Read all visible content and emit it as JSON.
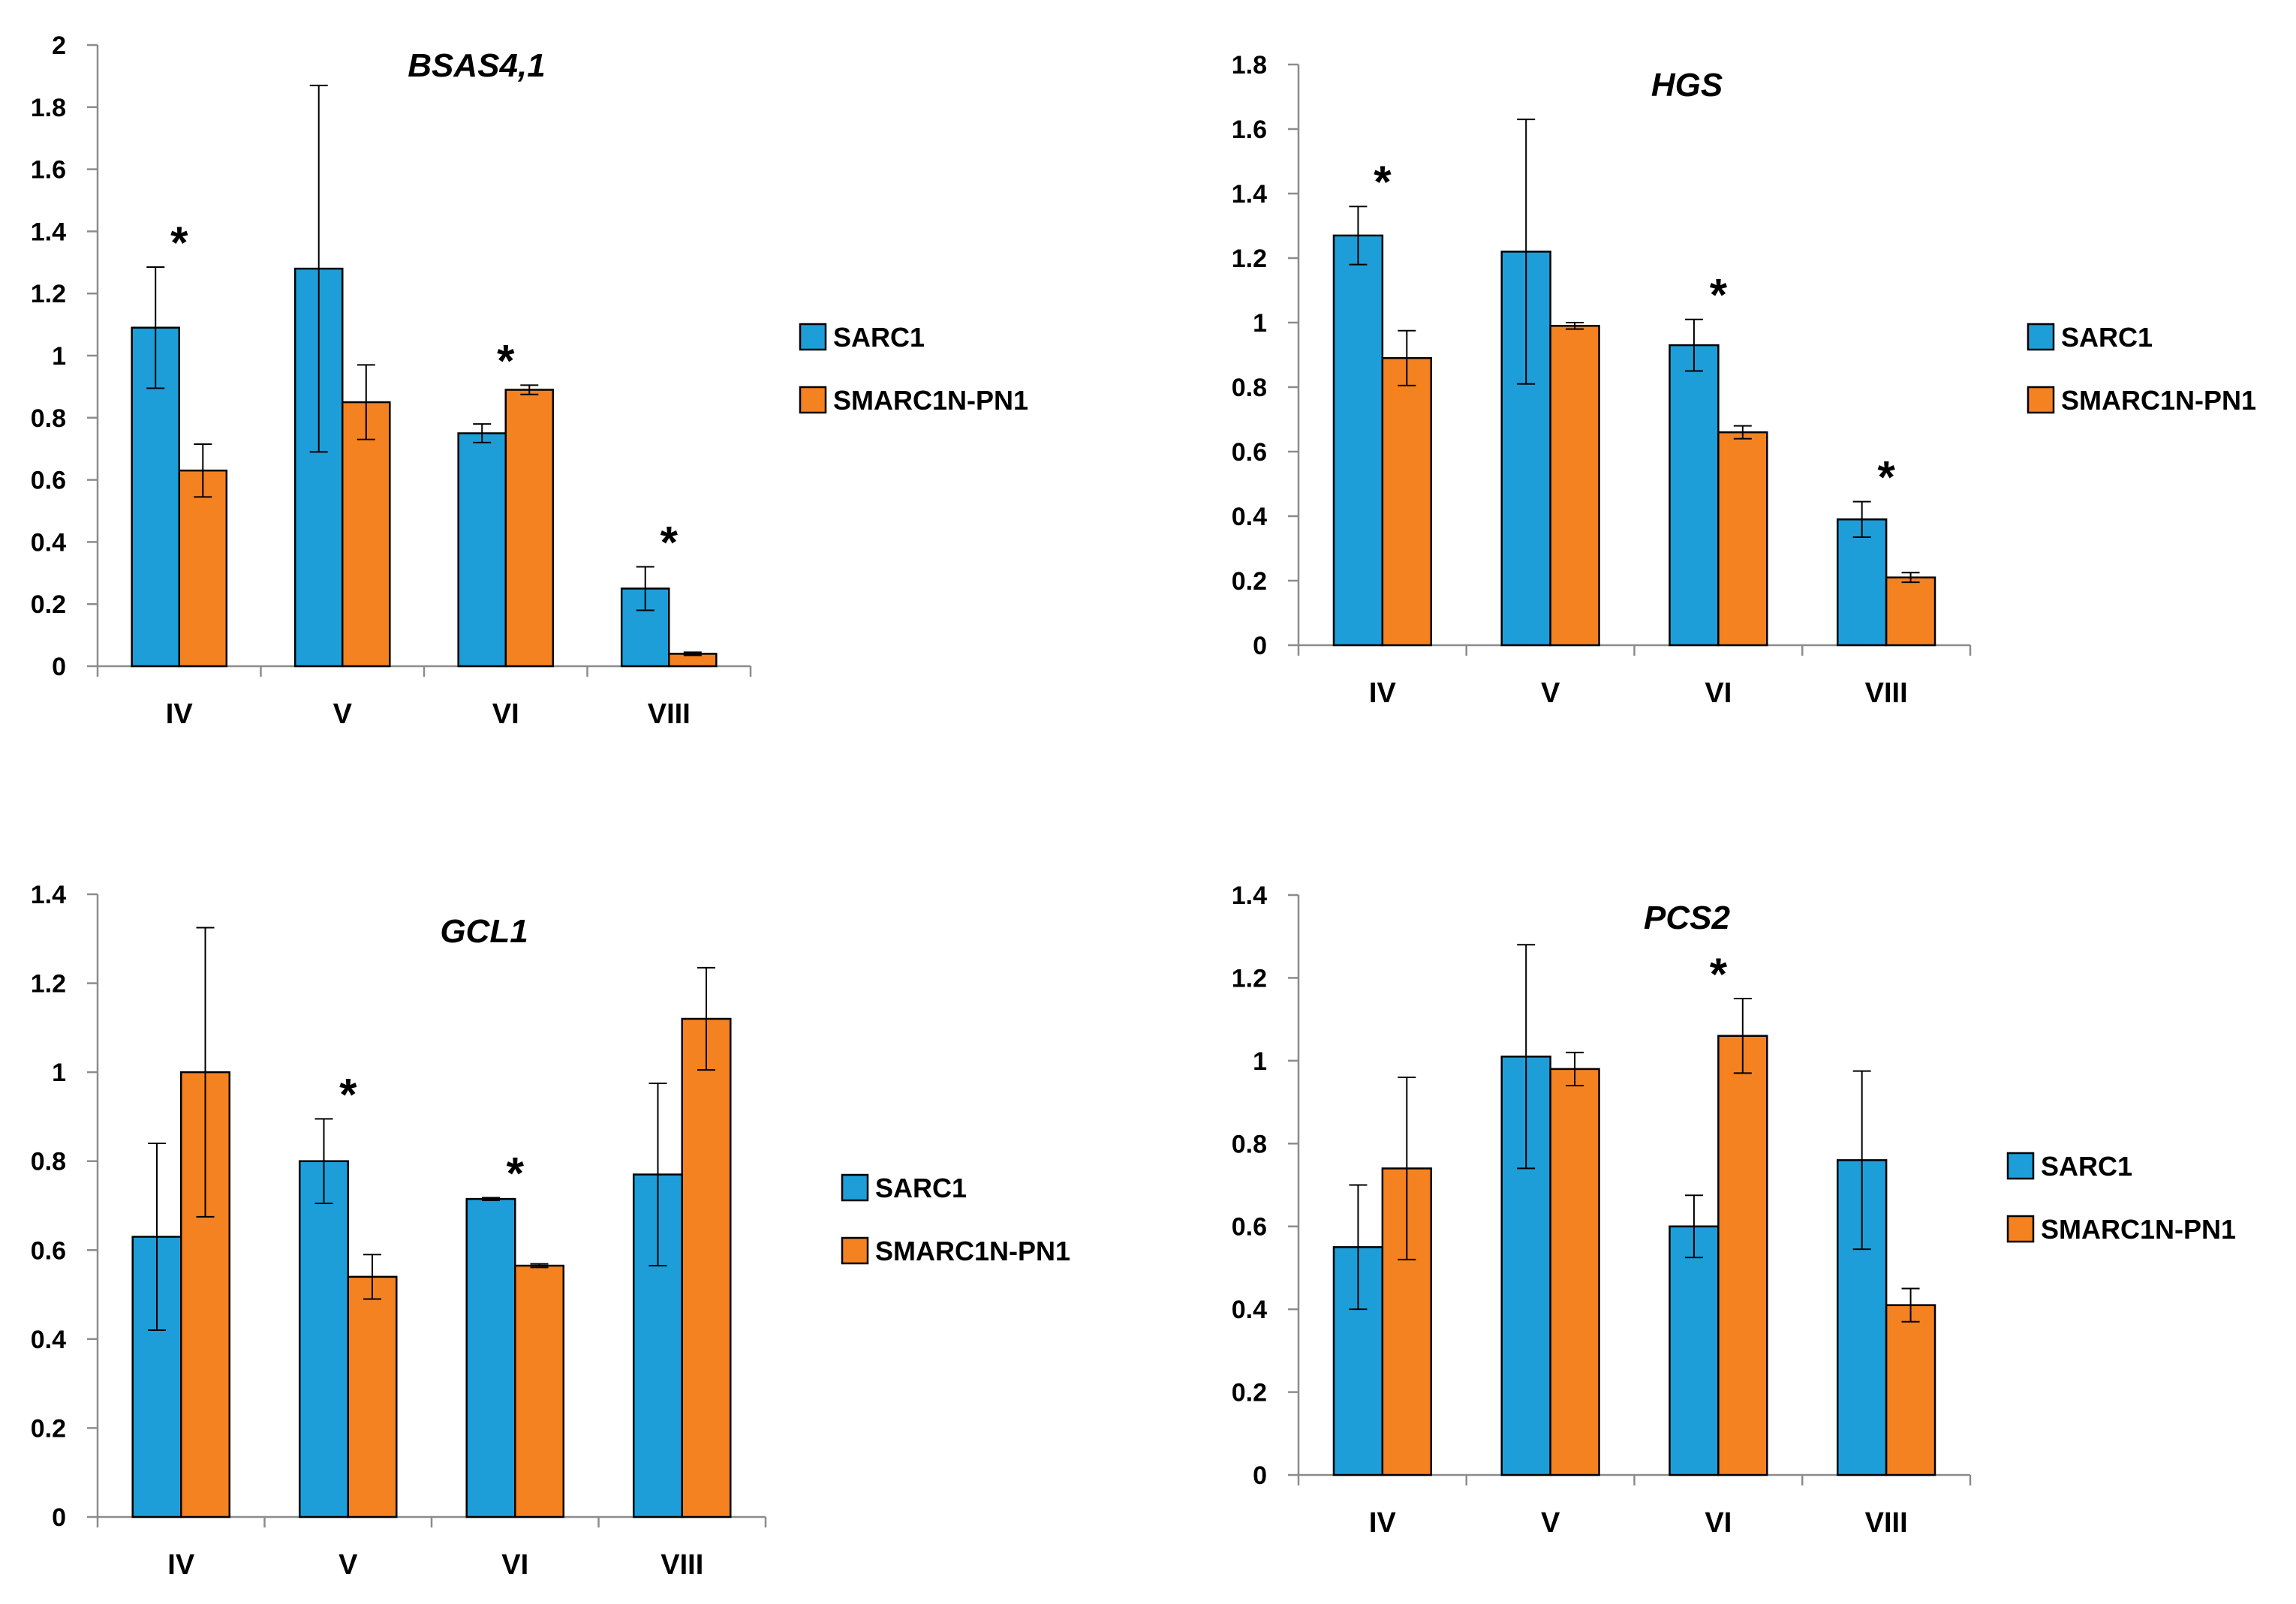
{
  "colors": {
    "sarc1": "#1E9ED9",
    "smarc": "#F58220",
    "axis": "#8C8C8C",
    "outline": "#000000"
  },
  "chart_data": [
    {
      "type": "bar",
      "title": "BSAS4,1",
      "categories": [
        "IV",
        "V",
        "VI",
        "VIII"
      ],
      "ylim": [
        0,
        2
      ],
      "yticks": [
        "0",
        "0.2",
        "0.4",
        "0.6",
        "0.8",
        "1",
        "1.2",
        "1.4",
        "1.6",
        "1.8",
        "2"
      ],
      "legend_position": "right",
      "series": [
        {
          "name": "SARC1",
          "values": [
            1.09,
            1.28,
            0.75,
            0.25
          ],
          "errors": [
            0.195,
            0.59,
            0.03,
            0.07
          ]
        },
        {
          "name": "SMARC1N-PN1",
          "values": [
            0.63,
            0.85,
            0.89,
            0.04
          ],
          "errors": [
            0.085,
            0.12,
            0.015,
            0.005
          ]
        }
      ],
      "annotations": [
        {
          "category": "IV",
          "text": "*"
        },
        {
          "category": "VI",
          "text": "*"
        },
        {
          "category": "VIII",
          "text": "*"
        }
      ]
    },
    {
      "type": "bar",
      "title": "HGS",
      "categories": [
        "IV",
        "V",
        "VI",
        "VIII"
      ],
      "ylim": [
        0,
        1.8
      ],
      "yticks": [
        "0",
        "0.2",
        "0.4",
        "0.6",
        "0.8",
        "1",
        "1.2",
        "1.4",
        "1.6",
        "1.8"
      ],
      "legend_position": "right",
      "series": [
        {
          "name": "SARC1",
          "values": [
            1.27,
            1.22,
            0.93,
            0.39
          ],
          "errors": [
            0.09,
            0.41,
            0.08,
            0.055
          ]
        },
        {
          "name": "SMARC1N-PN1",
          "values": [
            0.89,
            0.99,
            0.66,
            0.21
          ],
          "errors": [
            0.085,
            0.01,
            0.02,
            0.015
          ]
        }
      ],
      "annotations": [
        {
          "category": "IV",
          "text": "*"
        },
        {
          "category": "VI",
          "text": "*"
        },
        {
          "category": "VIII",
          "text": "*"
        }
      ]
    },
    {
      "type": "bar",
      "title": "GCL1",
      "categories": [
        "IV",
        "V",
        "VI",
        "VIII"
      ],
      "ylim": [
        0,
        1.4
      ],
      "yticks": [
        "0",
        "0.2",
        "0.4",
        "0.6",
        "0.8",
        "1",
        "1.2",
        "1.4"
      ],
      "legend_position": "right",
      "series": [
        {
          "name": "SARC1",
          "values": [
            0.63,
            0.8,
            0.715,
            0.77
          ],
          "errors": [
            0.21,
            0.095,
            0.003,
            0.205
          ]
        },
        {
          "name": "SMARC1N-PN1",
          "values": [
            1.0,
            0.54,
            0.565,
            1.12
          ],
          "errors": [
            0.325,
            0.05,
            0.004,
            0.115
          ]
        }
      ],
      "annotations": [
        {
          "category": "V",
          "text": "*"
        },
        {
          "category": "VI",
          "text": "*"
        }
      ]
    },
    {
      "type": "bar",
      "title": "PCS2",
      "categories": [
        "IV",
        "V",
        "VI",
        "VIII"
      ],
      "ylim": [
        0,
        1.4
      ],
      "yticks": [
        "0",
        "0.2",
        "0.4",
        "0.6",
        "0.8",
        "1",
        "1.2",
        "1.4"
      ],
      "legend_position": "right",
      "series": [
        {
          "name": "SARC1",
          "values": [
            0.55,
            1.01,
            0.6,
            0.76
          ],
          "errors": [
            0.15,
            0.27,
            0.075,
            0.215
          ]
        },
        {
          "name": "SMARC1N-PN1",
          "values": [
            0.74,
            0.98,
            1.06,
            0.41
          ],
          "errors": [
            0.22,
            0.04,
            0.09,
            0.04
          ]
        }
      ],
      "annotations": [
        {
          "category": "VI",
          "text": "*"
        }
      ]
    }
  ]
}
